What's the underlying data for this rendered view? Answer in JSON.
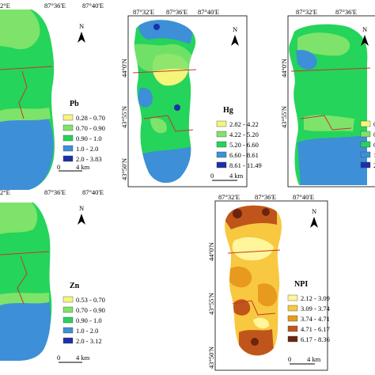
{
  "colors": {
    "pb": [
      "#f5f57a",
      "#7ee36a",
      "#25d45a",
      "#3d8fd8",
      "#1d2fa8"
    ],
    "npi": [
      "#fff59a",
      "#f7c840",
      "#e89a1e",
      "#c0551b",
      "#6b2410"
    ],
    "road": "#c0392b",
    "grid": "#555555"
  },
  "panels": {
    "pb": {
      "top_ticks": [
        "2°E",
        "87°36'E",
        "87°40'E"
      ],
      "title": "Pb",
      "legend": [
        "0.28 - 0.70",
        "0.70 - 0.90",
        "0.90 - 1.0",
        "1.0 - 2.0",
        "2.0 - 3.83"
      ]
    },
    "hg": {
      "top_ticks": [
        "87°32'E",
        "87°36'E",
        "87°40'E"
      ],
      "left_ticks": [
        "44°0'N",
        "43°55'N",
        "43°50'N"
      ],
      "title": "Hg",
      "legend": [
        "2.82 - 4.22",
        "4.22 - 5.20",
        "5.20 - 6.60",
        "6.60 - 8.61",
        "8.61 - 11.49"
      ],
      "scale": [
        "0",
        "4 km"
      ],
      "north": "N"
    },
    "p3": {
      "top_ticks": [
        "87°32'E",
        "87°36'E"
      ],
      "left_ticks": [
        "44°0'N",
        "43°55'N"
      ],
      "legend": [
        "0.",
        "0.",
        "0.",
        "1.",
        "2."
      ],
      "north": "N"
    },
    "zn": {
      "top_ticks": [
        "2°E",
        "87°36'E",
        "87°40'E"
      ],
      "title": "Zn",
      "legend": [
        "0.53 - 0.70",
        "0.70 - 0.90",
        "0.90 - 1.0",
        "1.0 - 2.0",
        "2.0 - 3.12"
      ],
      "scale": [
        "0",
        "4 km"
      ],
      "north": "N"
    },
    "npi": {
      "top_ticks": [
        "87°32'E",
        "87°36'E",
        "87°40'E"
      ],
      "left_ticks": [
        "44°0'N",
        "43°55'N",
        "43°50'N"
      ],
      "title": "NPI",
      "legend": [
        "2.12 - 3.09",
        "3.09 - 3.74",
        "3.74 - 4.71",
        "4.71 - 6.17",
        "6.17 - 8.36"
      ],
      "scale": [
        "0",
        "4 km"
      ],
      "north": "N"
    },
    "pb_scale": [
      "0",
      "4 km"
    ],
    "pb_north": "N"
  }
}
